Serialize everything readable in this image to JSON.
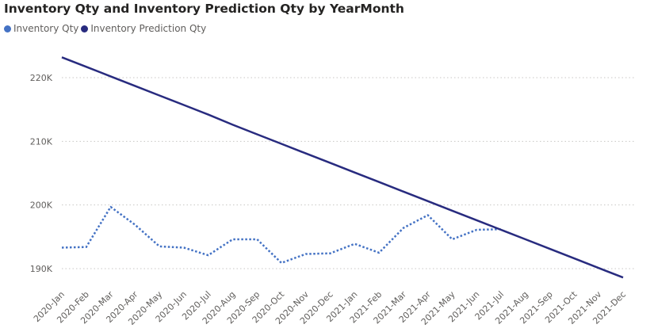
{
  "chart_data": {
    "type": "line",
    "title": "Inventory Qty and Inventory Prediction Qty by YearMonth",
    "xlabel": "",
    "ylabel": "",
    "categories": [
      "2020-Jan",
      "2020-Feb",
      "2020-Mar",
      "2020-Apr",
      "2020-May",
      "2020-Jun",
      "2020-Jul",
      "2020-Aug",
      "2020-Sep",
      "2020-Oct",
      "2020-Nov",
      "2020-Dec",
      "2021-Jan",
      "2021-Feb",
      "2021-Mar",
      "2021-Apr",
      "2021-May",
      "2021-Jun",
      "2021-Jul",
      "2021-Aug",
      "2021-Sep",
      "2021-Oct",
      "2021-Nov",
      "2021-Dec"
    ],
    "ylim": [
      187500,
      226000
    ],
    "yticks": [
      190000,
      200000,
      210000,
      220000
    ],
    "ytick_labels": [
      "190K",
      "200K",
      "210K",
      "220K"
    ],
    "grid": true,
    "legend_position": "top-left",
    "series": [
      {
        "name": "Inventory Qty",
        "color": "#4472c4",
        "style": "dotted",
        "values": [
          193300,
          193400,
          199700,
          196900,
          193500,
          193300,
          192100,
          194600,
          194600,
          190900,
          192300,
          192400,
          193900,
          192500,
          196400,
          198400,
          194600,
          196100,
          196200,
          null,
          null,
          null,
          null,
          null
        ]
      },
      {
        "name": "Inventory Prediction Qty",
        "color": "#282b7f",
        "style": "solid",
        "values": [
          223200,
          221700,
          220200,
          218700,
          217200,
          215700,
          214200,
          212600,
          211100,
          209600,
          208100,
          206600,
          205100,
          203600,
          202100,
          200600,
          199100,
          197600,
          196100,
          194600,
          193100,
          191600,
          190100,
          188600
        ]
      }
    ]
  }
}
